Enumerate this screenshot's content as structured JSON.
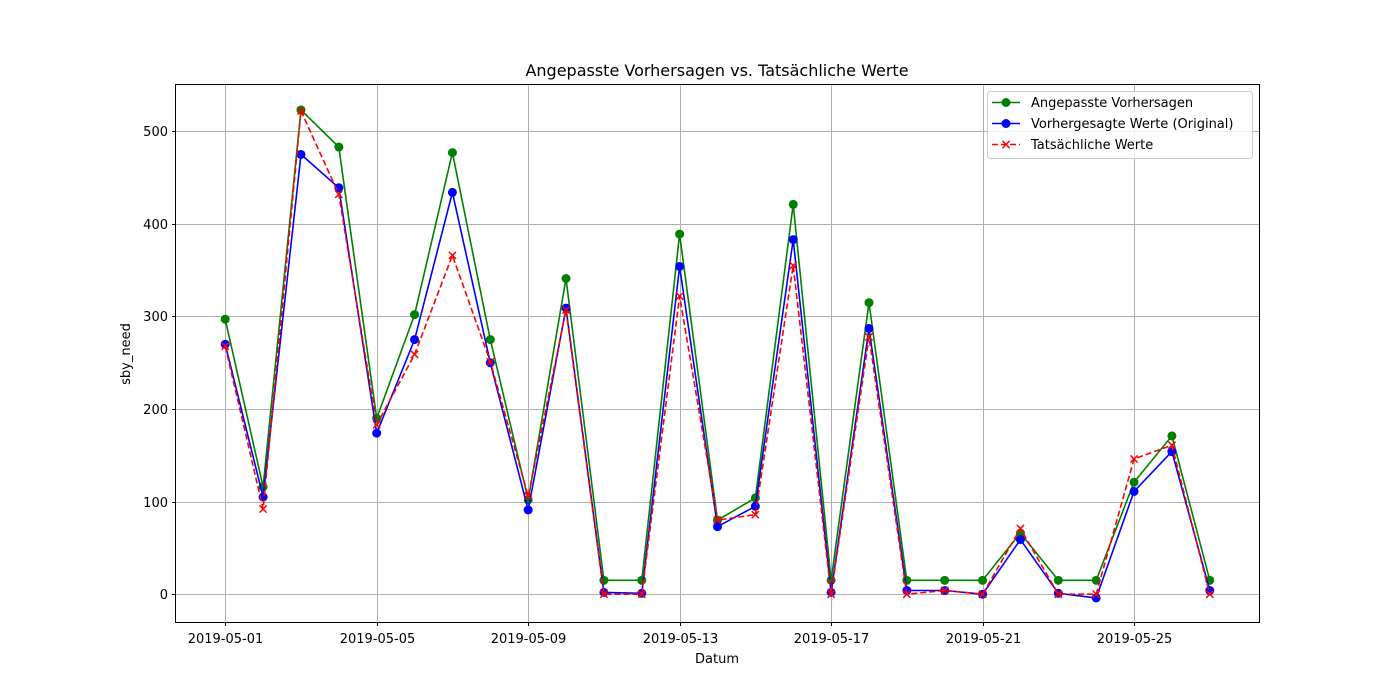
{
  "chart_data": {
    "type": "line",
    "title": "Angepasste Vorhersagen vs. Tatsächliche Werte",
    "xlabel": "Datum",
    "ylabel": "sby_need",
    "x": [
      "2019-05-01",
      "2019-05-02",
      "2019-05-03",
      "2019-05-04",
      "2019-05-05",
      "2019-05-06",
      "2019-05-07",
      "2019-05-08",
      "2019-05-09",
      "2019-05-10",
      "2019-05-11",
      "2019-05-12",
      "2019-05-13",
      "2019-05-14",
      "2019-05-15",
      "2019-05-16",
      "2019-05-17",
      "2019-05-18",
      "2019-05-19",
      "2019-05-20",
      "2019-05-21",
      "2019-05-22",
      "2019-05-23",
      "2019-05-24",
      "2019-05-25",
      "2019-05-26",
      "2019-05-27"
    ],
    "x_ticks": [
      "2019-05-01",
      "2019-05-05",
      "2019-05-09",
      "2019-05-13",
      "2019-05-17",
      "2019-05-21",
      "2019-05-25"
    ],
    "y_ticks": [
      0,
      100,
      200,
      300,
      400,
      500
    ],
    "xlim": [
      "2019-04-29.7",
      "2019-05-28.3"
    ],
    "ylim": [
      -30,
      550
    ],
    "grid": true,
    "legend_position": "top-right",
    "series": [
      {
        "name": "Angepasste Vorhersagen",
        "color": "#008000",
        "style": "solid",
        "marker": "circle",
        "values": [
          297,
          116,
          523,
          483,
          190,
          302,
          477,
          275,
          102,
          341,
          15,
          15,
          389,
          80,
          104,
          421,
          15,
          315,
          15,
          15,
          15,
          66,
          15,
          15,
          121,
          171,
          15
        ]
      },
      {
        "name": "Vorhergesagte Werte (Original)",
        "color": "#0000ff",
        "style": "solid",
        "marker": "circle",
        "values": [
          270,
          105,
          475,
          439,
          174,
          275,
          434,
          250,
          91,
          309,
          2,
          1,
          354,
          73,
          95,
          383,
          2,
          287,
          4,
          4,
          0,
          59,
          1,
          -4,
          111,
          154,
          4
        ]
      },
      {
        "name": "Tatsächliche Werte",
        "color": "#ff0000",
        "style": "dashed",
        "marker": "x",
        "values": [
          268,
          92,
          522,
          432,
          183,
          259,
          366,
          251,
          106,
          307,
          0,
          0,
          322,
          80,
          86,
          355,
          0,
          278,
          0,
          4,
          0,
          71,
          0,
          0,
          146,
          161,
          0
        ]
      }
    ]
  }
}
